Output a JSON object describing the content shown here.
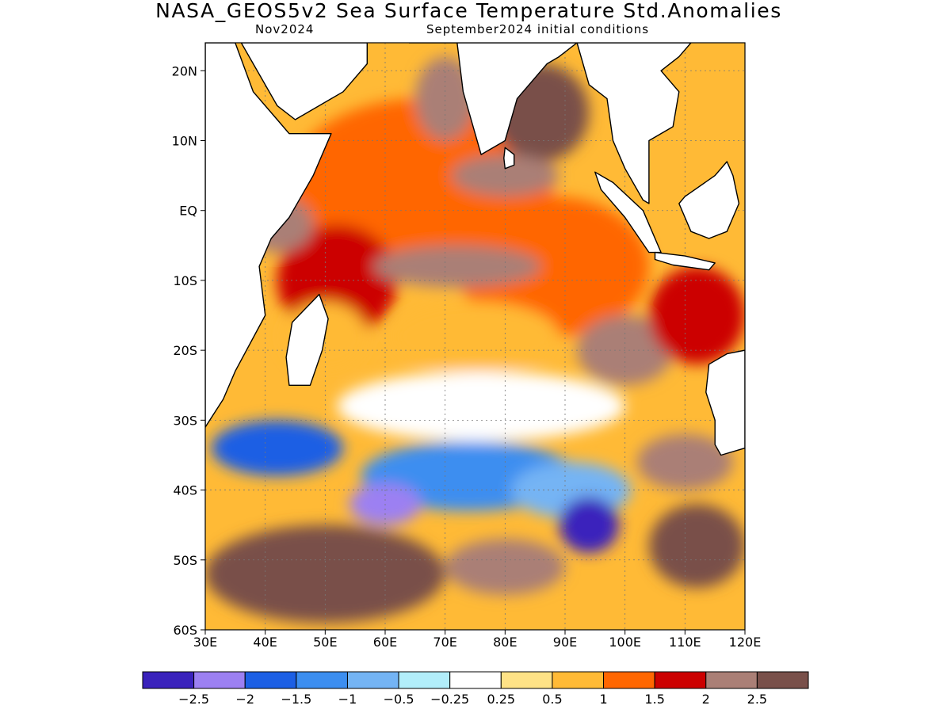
{
  "title": "NASA_GEOS5v2 Sea Surface Temperature Std.Anomalies",
  "subtitle_left": "Nov2024",
  "subtitle_right": "September2024 initial conditions",
  "map": {
    "lon_range": [
      30,
      120
    ],
    "lat_range": [
      -60,
      24
    ],
    "lat_ticks": [
      {
        "v": 20,
        "label": "20N"
      },
      {
        "v": 10,
        "label": "10N"
      },
      {
        "v": 0,
        "label": "EQ"
      },
      {
        "v": -10,
        "label": "10S"
      },
      {
        "v": -20,
        "label": "20S"
      },
      {
        "v": -30,
        "label": "30S"
      },
      {
        "v": -40,
        "label": "40S"
      },
      {
        "v": -50,
        "label": "50S"
      },
      {
        "v": -60,
        "label": "60S"
      }
    ],
    "lon_ticks": [
      {
        "v": 30,
        "label": "30E"
      },
      {
        "v": 40,
        "label": "40E"
      },
      {
        "v": 50,
        "label": "50E"
      },
      {
        "v": 60,
        "label": "60E"
      },
      {
        "v": 70,
        "label": "70E"
      },
      {
        "v": 80,
        "label": "80E"
      },
      {
        "v": 90,
        "label": "90E"
      },
      {
        "v": 100,
        "label": "100E"
      },
      {
        "v": 110,
        "label": "110E"
      },
      {
        "v": 120,
        "label": "120E"
      }
    ],
    "grid_lines": true
  },
  "colorbar": {
    "colors": [
      "#3a22bc",
      "#9c80f2",
      "#1c5fe4",
      "#3c8ef0",
      "#74b4f4",
      "#b2eefa",
      "#ffffff",
      "#fee286",
      "#ffba36",
      "#ff6600",
      "#cc0000",
      "#aa7f76",
      "#79504a"
    ],
    "labels": [
      "−2.5",
      "−2",
      "−1.5",
      "−1",
      "−0.5",
      "−0.25",
      "0.25",
      "0.5",
      "1",
      "1.5",
      "2",
      "2.5"
    ]
  },
  "regions": [
    {
      "lon": 66,
      "lat": 4,
      "rx": 22,
      "ry": 12,
      "level": 9
    },
    {
      "lon": 88,
      "lat": -8,
      "rx": 16,
      "ry": 10,
      "level": 9
    },
    {
      "lon": 52,
      "lat": -10,
      "rx": 10,
      "ry": 8,
      "level": 10
    },
    {
      "lon": 70,
      "lat": 16,
      "rx": 5,
      "ry": 6,
      "level": 11
    },
    {
      "lon": 86,
      "lat": 14,
      "rx": 8,
      "ry": 7,
      "level": 12
    },
    {
      "lon": 80,
      "lat": 5,
      "rx": 9,
      "ry": 3,
      "level": 11
    },
    {
      "lon": 72,
      "lat": -8,
      "rx": 14,
      "ry": 3,
      "level": 11
    },
    {
      "lon": 42,
      "lat": -2,
      "rx": 6,
      "ry": 4,
      "level": 11
    },
    {
      "lon": 100,
      "lat": -20,
      "rx": 8,
      "ry": 5,
      "level": 11
    },
    {
      "lon": 75,
      "lat": -18,
      "rx": 14,
      "ry": 5,
      "level": 8
    },
    {
      "lon": 50,
      "lat": -18,
      "rx": 7,
      "ry": 5,
      "level": 8
    },
    {
      "lon": 112,
      "lat": -15,
      "rx": 8,
      "ry": 7,
      "level": 10
    },
    {
      "lon": 76,
      "lat": -28,
      "rx": 24,
      "ry": 5,
      "level": 6
    },
    {
      "lon": 42,
      "lat": -34,
      "rx": 11,
      "ry": 4,
      "level": 2
    },
    {
      "lon": 74,
      "lat": -38,
      "rx": 18,
      "ry": 5,
      "level": 3
    },
    {
      "lon": 91,
      "lat": -40,
      "rx": 10,
      "ry": 4,
      "level": 4
    },
    {
      "lon": 60,
      "lat": -42,
      "rx": 6,
      "ry": 3,
      "level": 1
    },
    {
      "lon": 94,
      "lat": -45,
      "rx": 5,
      "ry": 4,
      "level": 0
    },
    {
      "lon": 50,
      "lat": -52,
      "rx": 20,
      "ry": 7,
      "level": 12
    },
    {
      "lon": 80,
      "lat": -51,
      "rx": 10,
      "ry": 4,
      "level": 11
    },
    {
      "lon": 112,
      "lat": -48,
      "rx": 8,
      "ry": 6,
      "level": 12
    },
    {
      "lon": 110,
      "lat": -36,
      "rx": 8,
      "ry": 4,
      "level": 11
    }
  ],
  "land": [
    {
      "name": "Africa",
      "points": [
        [
          30,
          24
        ],
        [
          35,
          24
        ],
        [
          38,
          17
        ],
        [
          42,
          13
        ],
        [
          44,
          11
        ],
        [
          51,
          11
        ],
        [
          48,
          5
        ],
        [
          44,
          -1
        ],
        [
          41,
          -4
        ],
        [
          39,
          -8
        ],
        [
          40,
          -15
        ],
        [
          35,
          -23
        ],
        [
          33,
          -27
        ],
        [
          30,
          -31
        ]
      ]
    },
    {
      "name": "Arabia",
      "points": [
        [
          36,
          24
        ],
        [
          57,
          24
        ],
        [
          57,
          21
        ],
        [
          53,
          17
        ],
        [
          45,
          13
        ],
        [
          42,
          15
        ]
      ]
    },
    {
      "name": "India",
      "points": [
        [
          64,
          24
        ],
        [
          72,
          24
        ],
        [
          73,
          17
        ],
        [
          76,
          8
        ],
        [
          80,
          10
        ],
        [
          82,
          16
        ],
        [
          87,
          21
        ],
        [
          89,
          22
        ],
        [
          92,
          24
        ]
      ]
    },
    {
      "name": "Sri Lanka",
      "points": [
        [
          80,
          9
        ],
        [
          81.5,
          8
        ],
        [
          81.5,
          6.5
        ],
        [
          80,
          6
        ],
        [
          79.8,
          7.5
        ]
      ]
    },
    {
      "name": "Madagascar",
      "points": [
        [
          49,
          -12
        ],
        [
          50.5,
          -15.5
        ],
        [
          49.5,
          -20
        ],
        [
          47.5,
          -25
        ],
        [
          44,
          -25
        ],
        [
          43.5,
          -21
        ],
        [
          44.5,
          -16
        ]
      ]
    },
    {
      "name": "Indochina",
      "points": [
        [
          92,
          24
        ],
        [
          94,
          18
        ],
        [
          97,
          16
        ],
        [
          98,
          10
        ],
        [
          100,
          6
        ],
        [
          103,
          1.5
        ],
        [
          104,
          1
        ],
        [
          104,
          10
        ],
        [
          108,
          12
        ],
        [
          109,
          17
        ],
        [
          106,
          20
        ],
        [
          109,
          22
        ],
        [
          111,
          24
        ]
      ]
    },
    {
      "name": "Sumatra",
      "points": [
        [
          95,
          5.5
        ],
        [
          98,
          4
        ],
        [
          103,
          0
        ],
        [
          106,
          -6
        ],
        [
          104,
          -6
        ],
        [
          100,
          -1
        ],
        [
          96,
          3
        ]
      ]
    },
    {
      "name": "Java",
      "points": [
        [
          105,
          -6
        ],
        [
          110,
          -6.5
        ],
        [
          115,
          -7.5
        ],
        [
          114,
          -8.5
        ],
        [
          108,
          -7.8
        ],
        [
          105,
          -7
        ]
      ]
    },
    {
      "name": "Borneo",
      "points": [
        [
          109,
          1
        ],
        [
          110,
          2
        ],
        [
          115,
          5
        ],
        [
          117,
          7
        ],
        [
          118,
          5
        ],
        [
          119,
          1
        ],
        [
          117,
          -3
        ],
        [
          114,
          -4
        ],
        [
          111,
          -3
        ]
      ]
    },
    {
      "name": "Australia",
      "points": [
        [
          120,
          -20
        ],
        [
          117,
          -20.5
        ],
        [
          114,
          -22
        ],
        [
          113.5,
          -26
        ],
        [
          115,
          -30
        ],
        [
          115,
          -33.5
        ],
        [
          116,
          -35
        ],
        [
          120,
          -34
        ]
      ]
    }
  ]
}
